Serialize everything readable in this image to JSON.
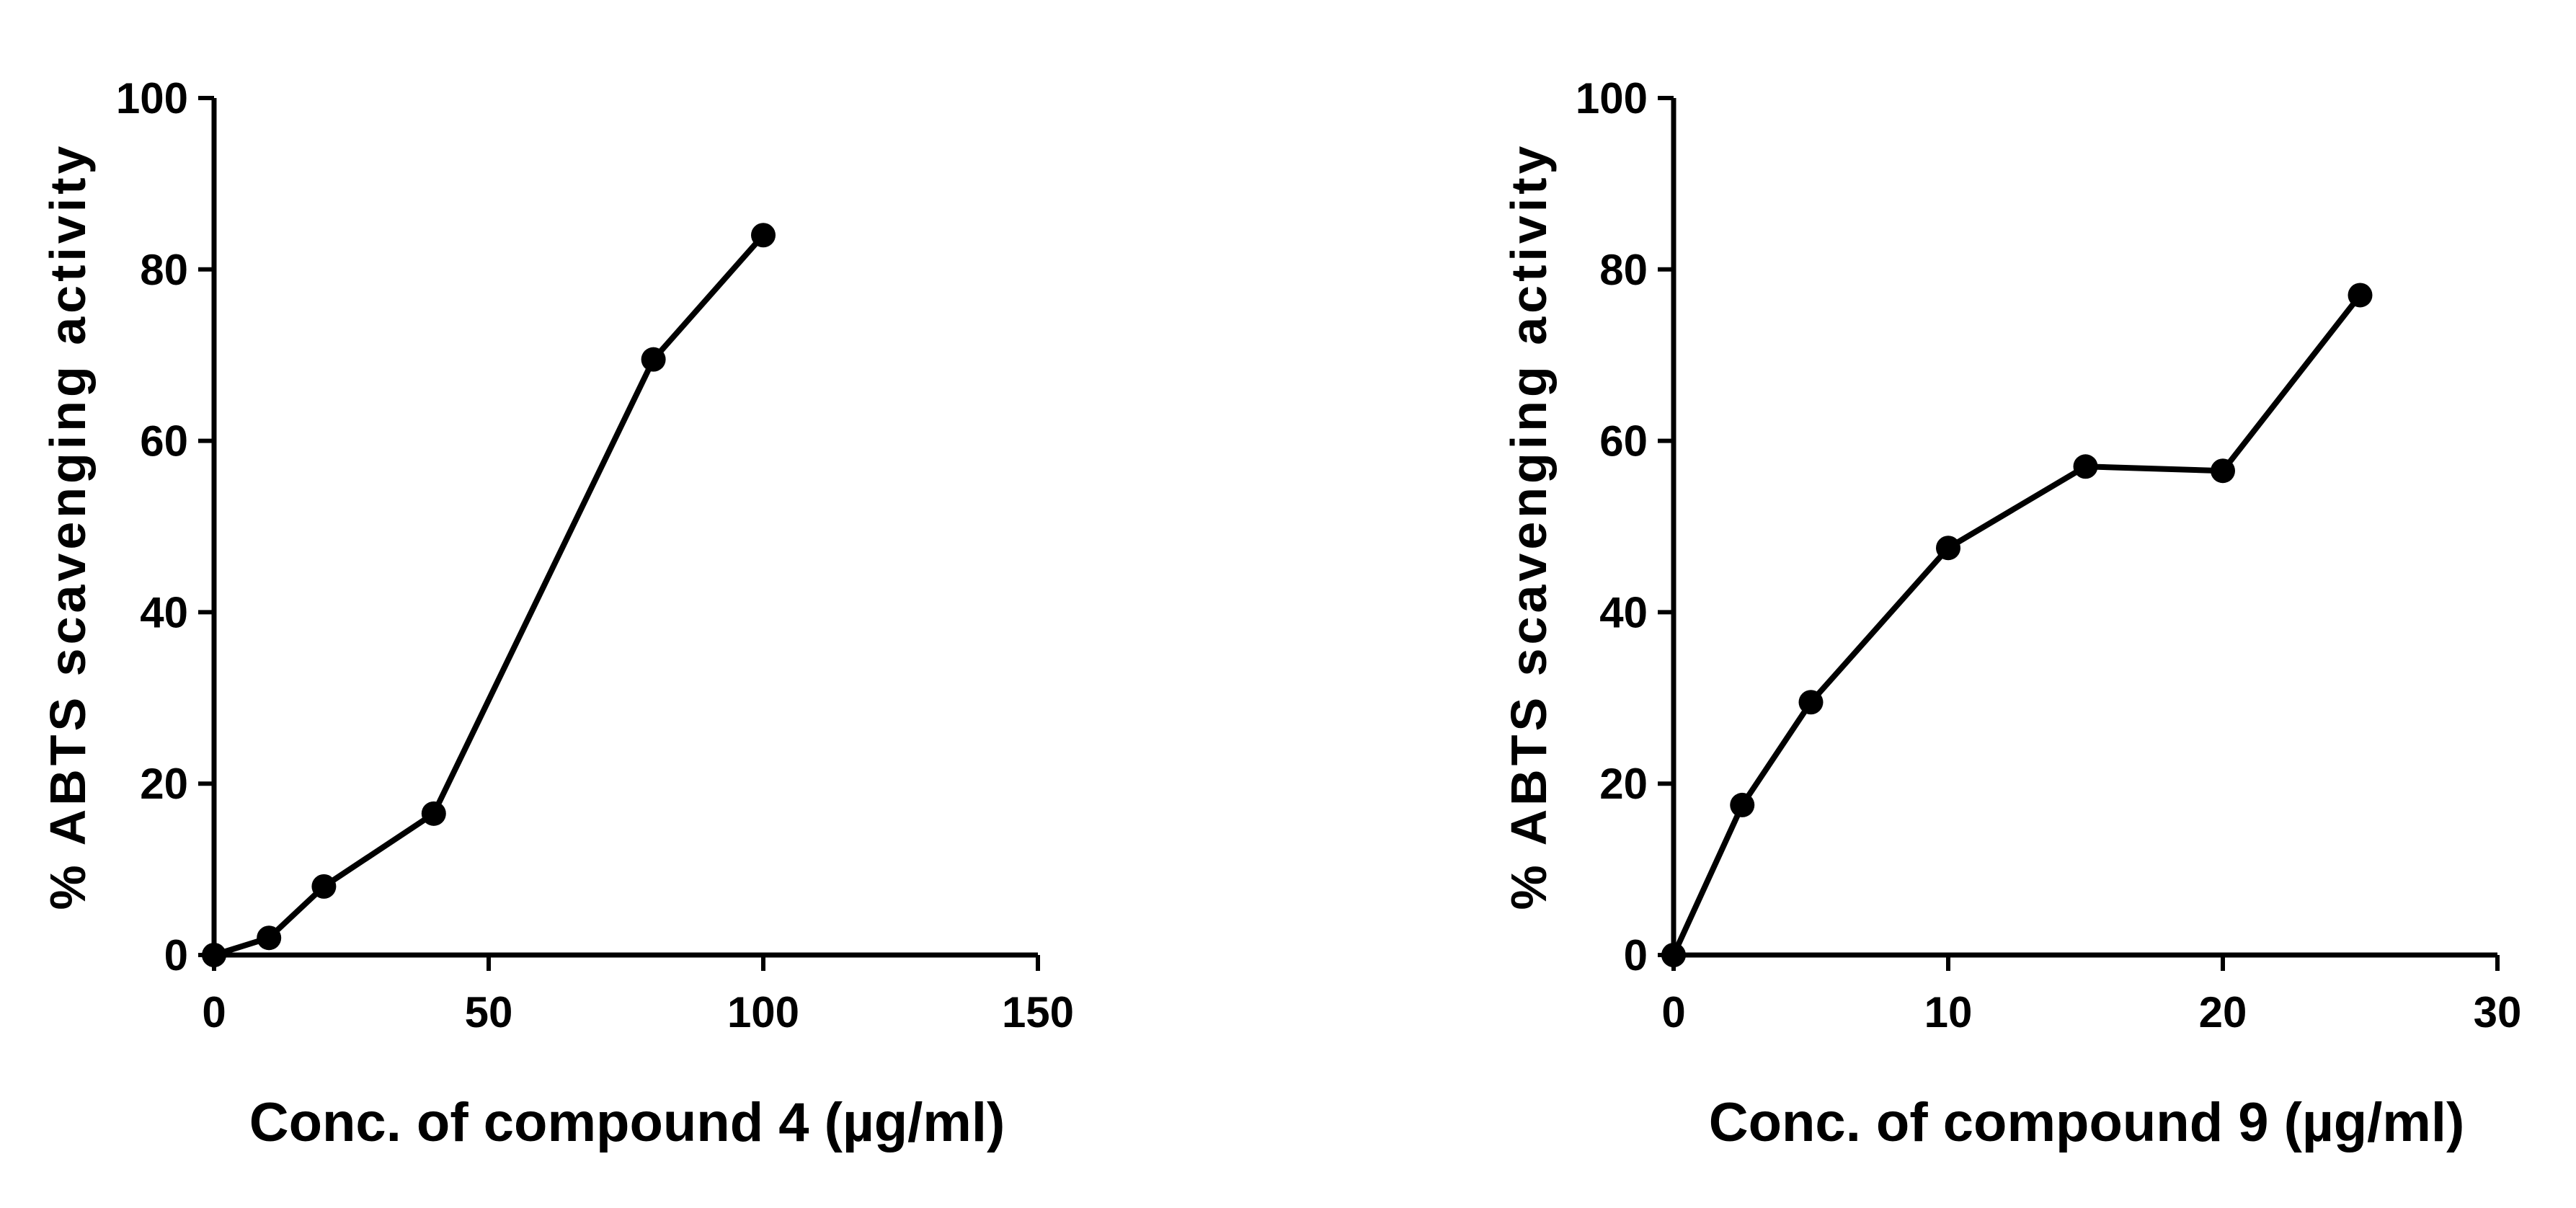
{
  "figure": {
    "background": "#ffffff",
    "line_color": "#000000",
    "marker_color": "#000000"
  },
  "chart_data": [
    {
      "type": "line",
      "title": "",
      "xlabel": "Conc. of compound 4  (µg/ml)",
      "ylabel": "% ABTS scavenging activity",
      "xlim": [
        0,
        150
      ],
      "ylim": [
        0,
        100
      ],
      "x_ticks": [
        0,
        50,
        100,
        150
      ],
      "y_ticks": [
        0,
        20,
        40,
        60,
        80,
        100
      ],
      "grid": false,
      "legend": "none",
      "series": [
        {
          "name": "compound 4",
          "x": [
            0,
            10,
            20,
            40,
            80,
            100
          ],
          "y": [
            0,
            2,
            8,
            16.5,
            69.5,
            84
          ]
        }
      ]
    },
    {
      "type": "line",
      "title": "",
      "xlabel": "Conc. of compound 9  (µg/ml)",
      "ylabel": "% ABTS scavenging activity",
      "xlim": [
        0,
        30
      ],
      "ylim": [
        0,
        100
      ],
      "x_ticks": [
        0,
        10,
        20,
        30
      ],
      "y_ticks": [
        0,
        20,
        40,
        60,
        80,
        100
      ],
      "grid": false,
      "legend": "none",
      "series": [
        {
          "name": "compound 9",
          "x": [
            0,
            2.5,
            5,
            10,
            15,
            20,
            25
          ],
          "y": [
            0,
            17.5,
            29.5,
            47.5,
            57,
            56.5,
            77
          ]
        }
      ]
    }
  ]
}
